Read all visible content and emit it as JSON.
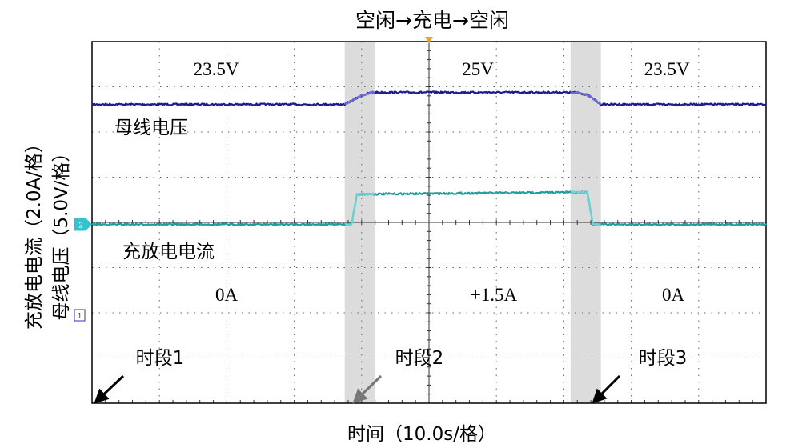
{
  "chart_data": {
    "type": "line",
    "title": "空闲→充电→空闲",
    "xlabel": "时间（10.0s/格）",
    "ylabel_left_outer": "充放电电流（2.0A/格）",
    "ylabel_left_inner": "母线电压（5.0V/格）",
    "x_unit_per_div": 10,
    "x_divisions": 10,
    "y_divisions": 8,
    "xlim": [
      0,
      100
    ],
    "grid": "dotted",
    "channel_markers": {
      "ch2": "2",
      "ch1": "1"
    },
    "series": [
      {
        "name": "母线电压",
        "color": "#1f1a8f",
        "transition_color": "#6a6ad0",
        "unit": "V",
        "x": [
          0,
          37.5,
          40.0,
          41.5,
          72.0,
          73.5,
          75.5,
          100
        ],
        "values": [
          23.5,
          23.5,
          24.6,
          25.0,
          25.0,
          24.7,
          23.5,
          23.5
        ]
      },
      {
        "name": "充放电电流",
        "color": "#1f9e9e",
        "transition_color": "#6fd0d0",
        "unit": "A",
        "x": [
          0,
          38.5,
          39.3,
          73.0,
          73.5,
          74.3,
          100
        ],
        "values": [
          0.0,
          0.0,
          1.45,
          1.55,
          1.55,
          0.0,
          0.0
        ]
      }
    ],
    "shaded_periods": [
      [
        37.5,
        42.0
      ],
      [
        71.0,
        75.5
      ]
    ],
    "annotations": {
      "voltage_labels": [
        "23.5V",
        "25V",
        "23.5V"
      ],
      "current_labels": [
        "0A",
        "+1.5A",
        "0A"
      ],
      "periods": [
        "时段1",
        "时段2",
        "时段3"
      ]
    }
  }
}
